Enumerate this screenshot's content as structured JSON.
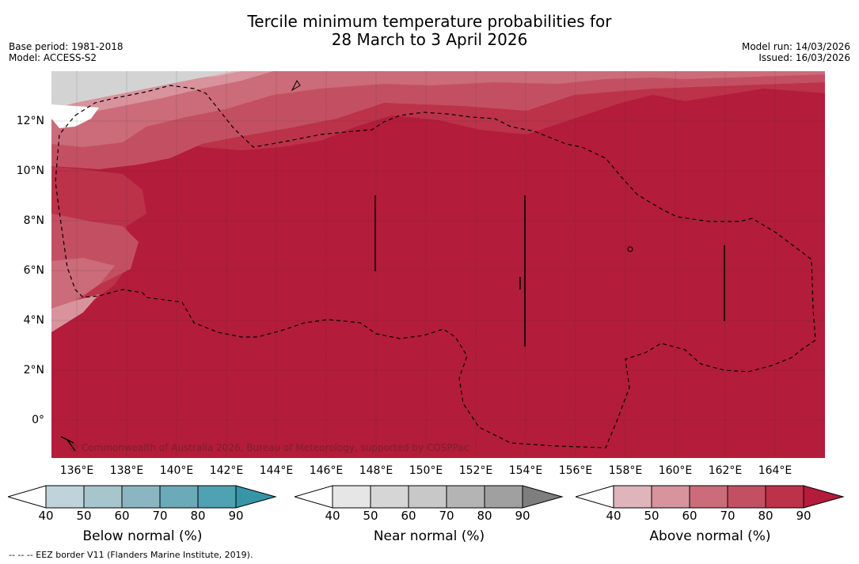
{
  "title": {
    "line1": "Tercile minimum temperature probabilities for",
    "line2": "28 March to 3 April 2026"
  },
  "meta": {
    "base_period": "Base period: 1981-2018",
    "model": "Model: ACCESS-S2",
    "model_run": "Model run: 14/03/2026",
    "issued": "Issued: 16/03/2026"
  },
  "map": {
    "lat_labels": [
      "12°N",
      "10°N",
      "8°N",
      "6°N",
      "4°N",
      "2°N",
      "0°"
    ],
    "lon_labels": [
      "136°E",
      "138°E",
      "140°E",
      "142°E",
      "144°E",
      "146°E",
      "148°E",
      "150°E",
      "152°E",
      "154°E",
      "156°E",
      "158°E",
      "160°E",
      "162°E",
      "164°E"
    ],
    "copyright": "© Commonwealth of Australia 2026, Bureau of Meteorology, supported by COSPPac",
    "colors": {
      "land": "#d3d3d3",
      "a40": "#e0b4bb",
      "a50": "#d8939d",
      "a60": "#cc6b79",
      "a70": "#c35062",
      "a80": "#bb3249",
      "a90": "#b31c3a"
    }
  },
  "colorbars": {
    "ticks": [
      "40",
      "50",
      "60",
      "70",
      "80",
      "90"
    ],
    "below": {
      "label": "Below normal (%)",
      "colors": [
        "#ffffff",
        "#bfd3da",
        "#a6c5cd",
        "#8bb6c1",
        "#6baab8",
        "#4ea2b2",
        "#3696a8"
      ]
    },
    "near": {
      "label": "Near normal (%)",
      "colors": [
        "#ffffff",
        "#e6e6e6",
        "#d6d6d6",
        "#c8c8c8",
        "#b4b4b4",
        "#a0a0a0",
        "#7e7e7e"
      ]
    },
    "above": {
      "label": "Above normal (%)",
      "colors": [
        "#ffffff",
        "#e0b4bb",
        "#d8939d",
        "#cc6b79",
        "#c35062",
        "#bb3249",
        "#b31c3a"
      ]
    }
  },
  "footer": "--  --  -- EEZ border V11 (Flanders Marine Institute, 2019)."
}
